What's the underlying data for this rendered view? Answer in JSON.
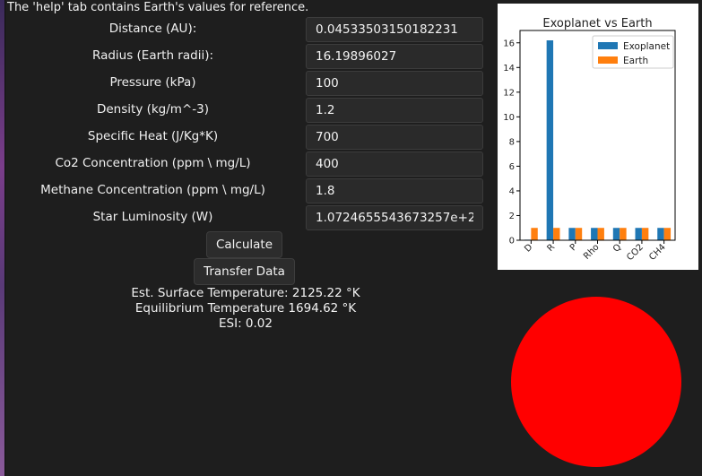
{
  "hint_text": "The 'help' tab contains Earth's values for reference.",
  "fields": [
    {
      "label": "Distance (AU):",
      "value": "0.04533503150182231"
    },
    {
      "label": "Radius (Earth radii):",
      "value": "16.19896027"
    },
    {
      "label": "Pressure (kPa)",
      "value": "100"
    },
    {
      "label": "Density (kg/m^-3)",
      "value": "1.2"
    },
    {
      "label": "Specific Heat (J/Kg*K)",
      "value": "700"
    },
    {
      "label": "Co2 Concentration (ppm \\ mg/L)",
      "value": "400"
    },
    {
      "label": "Methane Concentration (ppm \\ mg/L)",
      "value": "1.8"
    },
    {
      "label": "Star Luminosity (W)",
      "value": "1.0724655543673257e+27"
    }
  ],
  "buttons": {
    "calculate": "Calculate",
    "transfer": "Transfer Data"
  },
  "results": {
    "surface_temp": "Est. Surface Temperature: 2125.22 °K",
    "equilibrium_temp": "Equilibrium Temperature 1694.62 °K",
    "esi": "ESI: 0.02"
  },
  "planet_color": "#ff0000",
  "chart_data": {
    "type": "bar",
    "title": "Exoplanet vs Earth",
    "xlabel": "",
    "ylabel": "",
    "categories": [
      "D",
      "R",
      "P",
      "Rho",
      "Q",
      "CO2",
      "CH4"
    ],
    "series": [
      {
        "name": "Exoplanet",
        "color": "#1f77b4",
        "values": [
          0.045,
          16.2,
          1,
          1,
          1,
          1,
          1
        ]
      },
      {
        "name": "Earth",
        "color": "#ff7f0e",
        "values": [
          1,
          1,
          1,
          1,
          1,
          1,
          1
        ]
      }
    ],
    "yticks": [
      "0",
      "2",
      "4",
      "6",
      "8",
      "10",
      "12",
      "14",
      "16"
    ],
    "ylim": [
      0,
      17
    ],
    "legend": "top-right",
    "grid": false
  }
}
